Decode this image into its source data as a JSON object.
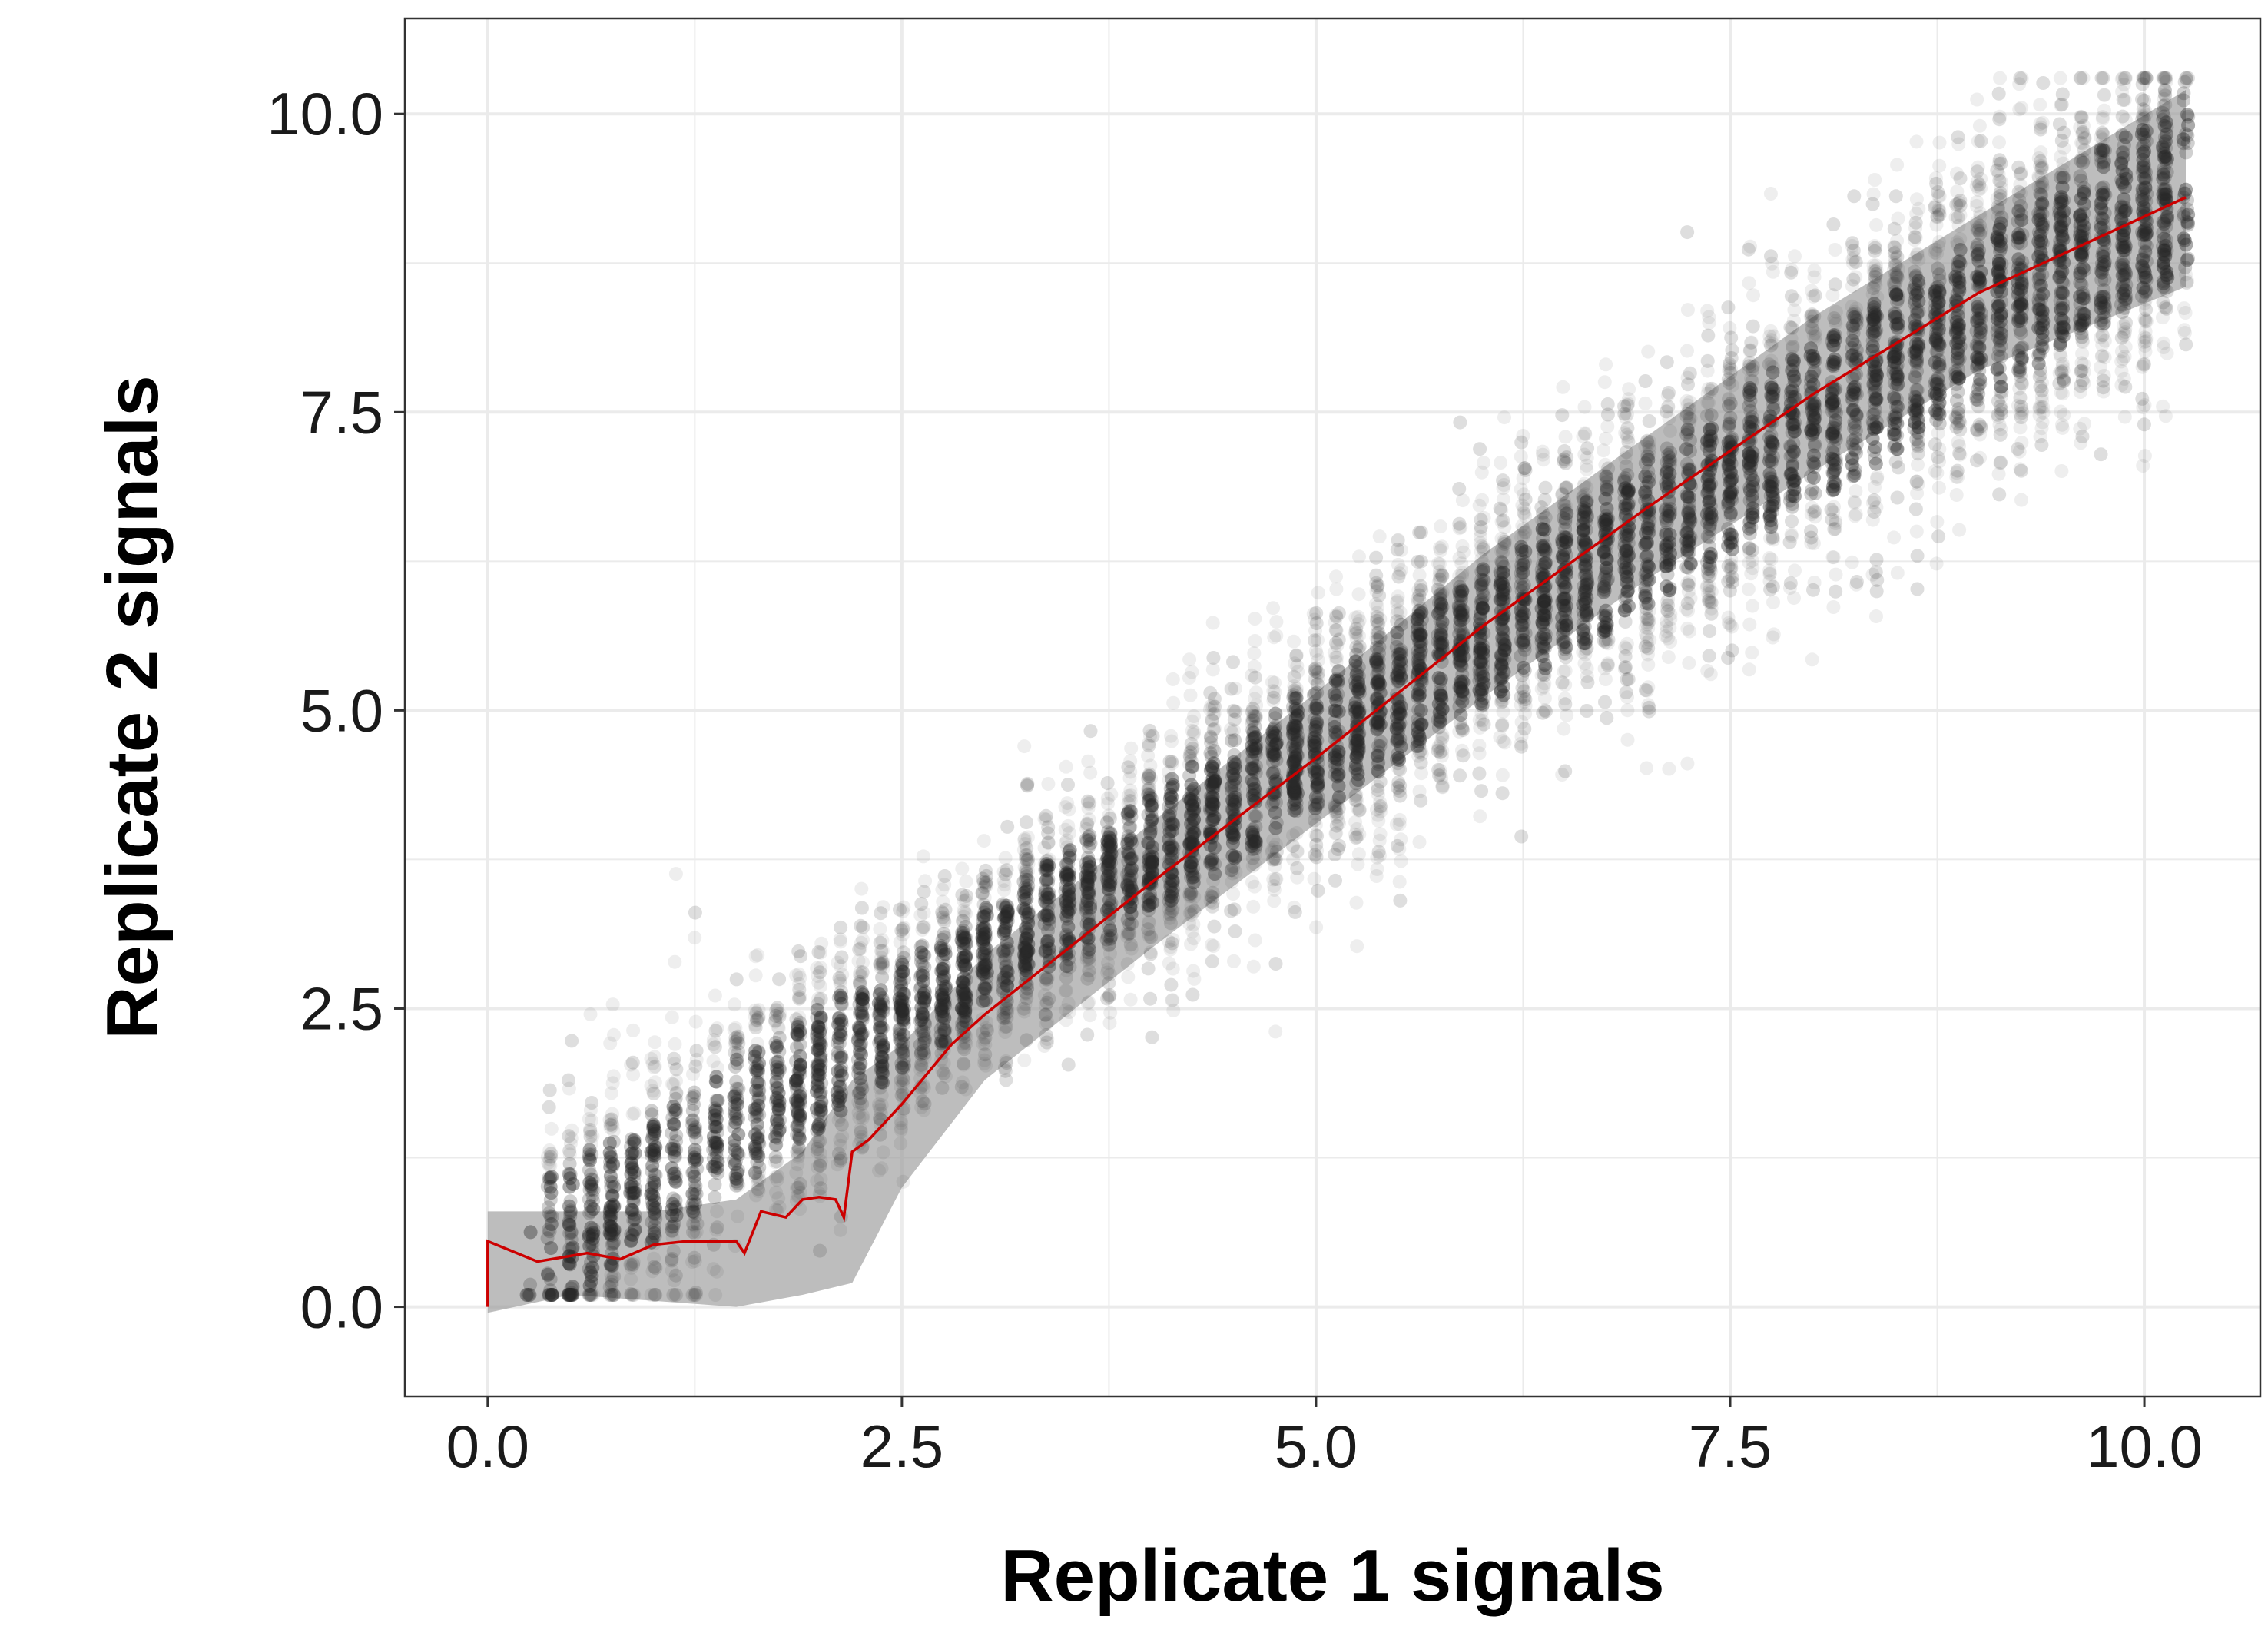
{
  "chart_data": {
    "type": "scatter",
    "title": "",
    "xlabel": "Replicate 1 signals",
    "ylabel": "Replicate 2 signals",
    "xlim": [
      -0.5,
      10.7
    ],
    "ylim": [
      -0.75,
      10.8
    ],
    "x_ticks": [
      0.0,
      2.5,
      5.0,
      7.5,
      10.0
    ],
    "x_tick_labels": [
      "0.0",
      "2.5",
      "5.0",
      "7.5",
      "10.0"
    ],
    "y_ticks": [
      0.0,
      2.5,
      5.0,
      7.5,
      10.0
    ],
    "y_tick_labels": [
      "0.0",
      "2.5",
      "5.0",
      "7.5",
      "10.0"
    ],
    "grid": true,
    "legend": "none",
    "colors": {
      "points": "#2b2b2b",
      "trend_line": "#cc0000",
      "confidence_band": "#9a9a9a",
      "grid": "#ebebeb",
      "panel_border": "#333333"
    },
    "series": [
      {
        "type": "scatter",
        "description_of_density": "approx. 20000 semi-transparent points scattered around the identity line; spread widens at low values",
        "x_range": [
          0.3,
          10.25
        ],
        "y_range": [
          0.1,
          10.3
        ]
      },
      {
        "type": "line",
        "x": [
          0.0,
          0.0,
          0.3,
          0.6,
          0.8,
          1.0,
          1.2,
          1.5,
          1.55,
          1.65,
          1.8,
          1.9,
          2.0,
          2.1,
          2.15,
          2.2,
          2.3,
          2.5,
          2.8,
          3.0,
          4.0,
          5.0,
          6.0,
          7.0,
          8.0,
          9.0,
          10.25
        ],
        "y": [
          0.0,
          0.55,
          0.38,
          0.45,
          0.4,
          0.52,
          0.55,
          0.55,
          0.45,
          0.8,
          0.75,
          0.9,
          0.92,
          0.9,
          0.75,
          1.3,
          1.4,
          1.7,
          2.2,
          2.45,
          3.55,
          4.6,
          5.7,
          6.7,
          7.65,
          8.5,
          9.3
        ]
      },
      {
        "type": "band",
        "x": [
          0.0,
          0.5,
          1.0,
          1.5,
          1.9,
          2.2,
          2.5,
          3.0,
          4.0,
          5.0,
          6.0,
          7.0,
          8.0,
          9.0,
          10.25
        ],
        "lower": [
          -0.05,
          0.1,
          0.05,
          0.0,
          0.1,
          0.2,
          1.0,
          1.9,
          3.0,
          4.05,
          5.1,
          6.1,
          7.0,
          7.85,
          8.55
        ],
        "upper": [
          0.8,
          0.8,
          0.8,
          0.9,
          1.3,
          1.9,
          2.2,
          2.95,
          4.05,
          5.15,
          6.3,
          7.3,
          8.3,
          9.15,
          10.2
        ]
      }
    ]
  }
}
